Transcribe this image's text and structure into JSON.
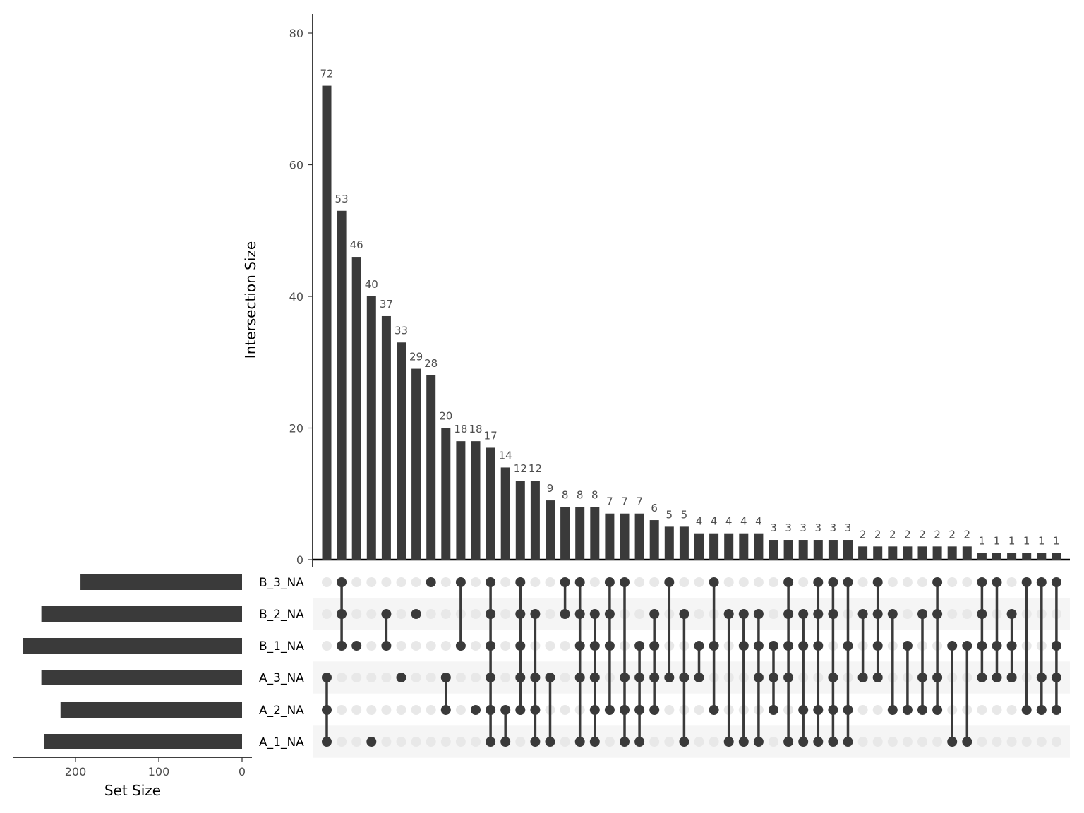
{
  "chart_data": {
    "type": "upset",
    "intersection_axis": {
      "label": "Intersection Size",
      "ylim": [
        0,
        80
      ],
      "ticks": [
        0,
        20,
        40,
        60,
        80
      ]
    },
    "set_size_axis": {
      "label": "Set Size",
      "ticks": [
        200,
        100,
        0
      ],
      "reversed": true
    },
    "sets": [
      {
        "name": "B_3_NA",
        "size": 194
      },
      {
        "name": "B_2_NA",
        "size": 241
      },
      {
        "name": "B_1_NA",
        "size": 263
      },
      {
        "name": "A_3_NA",
        "size": 241
      },
      {
        "name": "A_2_NA",
        "size": 218
      },
      {
        "name": "A_1_NA",
        "size": 238
      }
    ],
    "intersections": [
      {
        "sets": [
          "A_3_NA",
          "A_2_NA",
          "A_1_NA"
        ],
        "value": 72
      },
      {
        "sets": [
          "B_3_NA",
          "B_2_NA",
          "B_1_NA"
        ],
        "value": 53
      },
      {
        "sets": [
          "B_1_NA"
        ],
        "value": 46
      },
      {
        "sets": [
          "A_1_NA"
        ],
        "value": 40
      },
      {
        "sets": [
          "B_2_NA",
          "B_1_NA"
        ],
        "value": 37
      },
      {
        "sets": [
          "A_3_NA"
        ],
        "value": 33
      },
      {
        "sets": [
          "B_2_NA"
        ],
        "value": 29
      },
      {
        "sets": [
          "B_3_NA"
        ],
        "value": 28
      },
      {
        "sets": [
          "A_3_NA",
          "A_2_NA"
        ],
        "value": 20
      },
      {
        "sets": [
          "B_3_NA",
          "B_1_NA"
        ],
        "value": 18
      },
      {
        "sets": [
          "A_2_NA"
        ],
        "value": 18
      },
      {
        "sets": [
          "B_3_NA",
          "B_2_NA",
          "B_1_NA",
          "A_3_NA",
          "A_2_NA",
          "A_1_NA"
        ],
        "value": 17
      },
      {
        "sets": [
          "A_2_NA",
          "A_1_NA"
        ],
        "value": 14
      },
      {
        "sets": [
          "B_3_NA",
          "B_2_NA",
          "B_1_NA",
          "A_3_NA",
          "A_2_NA"
        ],
        "value": 12
      },
      {
        "sets": [
          "B_2_NA",
          "A_3_NA",
          "A_2_NA",
          "A_1_NA"
        ],
        "value": 12
      },
      {
        "sets": [
          "A_3_NA",
          "A_1_NA"
        ],
        "value": 9
      },
      {
        "sets": [
          "B_3_NA",
          "B_2_NA"
        ],
        "value": 8
      },
      {
        "sets": [
          "B_3_NA",
          "B_2_NA",
          "B_1_NA",
          "A_3_NA",
          "A_1_NA"
        ],
        "value": 8
      },
      {
        "sets": [
          "B_2_NA",
          "B_1_NA",
          "A_3_NA",
          "A_2_NA",
          "A_1_NA"
        ],
        "value": 8
      },
      {
        "sets": [
          "B_3_NA",
          "B_2_NA",
          "B_1_NA",
          "A_2_NA"
        ],
        "value": 7
      },
      {
        "sets": [
          "B_3_NA",
          "A_3_NA",
          "A_2_NA",
          "A_1_NA"
        ],
        "value": 7
      },
      {
        "sets": [
          "B_1_NA",
          "A_3_NA",
          "A_2_NA",
          "A_1_NA"
        ],
        "value": 7
      },
      {
        "sets": [
          "B_2_NA",
          "B_1_NA",
          "A_3_NA",
          "A_2_NA"
        ],
        "value": 6
      },
      {
        "sets": [
          "B_3_NA",
          "A_3_NA"
        ],
        "value": 5
      },
      {
        "sets": [
          "B_2_NA",
          "A_3_NA",
          "A_1_NA"
        ],
        "value": 5
      },
      {
        "sets": [
          "B_1_NA",
          "A_3_NA"
        ],
        "value": 4
      },
      {
        "sets": [
          "B_3_NA",
          "B_1_NA",
          "A_2_NA"
        ],
        "value": 4
      },
      {
        "sets": [
          "B_2_NA",
          "A_1_NA"
        ],
        "value": 4
      },
      {
        "sets": [
          "B_2_NA",
          "B_1_NA",
          "A_1_NA"
        ],
        "value": 4
      },
      {
        "sets": [
          "B_2_NA",
          "B_1_NA",
          "A_3_NA",
          "A_1_NA"
        ],
        "value": 4
      },
      {
        "sets": [
          "B_1_NA",
          "A_3_NA",
          "A_2_NA"
        ],
        "value": 3
      },
      {
        "sets": [
          "B_3_NA",
          "B_2_NA",
          "B_1_NA",
          "A_3_NA",
          "A_1_NA"
        ],
        "value": 3
      },
      {
        "sets": [
          "B_2_NA",
          "B_1_NA",
          "A_2_NA",
          "A_1_NA"
        ],
        "value": 3
      },
      {
        "sets": [
          "B_3_NA",
          "B_2_NA",
          "B_1_NA",
          "A_2_NA",
          "A_1_NA"
        ],
        "value": 3
      },
      {
        "sets": [
          "B_3_NA",
          "B_2_NA",
          "A_3_NA",
          "A_2_NA",
          "A_1_NA"
        ],
        "value": 3
      },
      {
        "sets": [
          "B_3_NA",
          "B_1_NA",
          "A_2_NA",
          "A_1_NA"
        ],
        "value": 3
      },
      {
        "sets": [
          "B_2_NA",
          "A_3_NA"
        ],
        "value": 2
      },
      {
        "sets": [
          "B_3_NA",
          "B_2_NA",
          "B_1_NA",
          "A_3_NA"
        ],
        "value": 2
      },
      {
        "sets": [
          "B_2_NA",
          "A_2_NA"
        ],
        "value": 2
      },
      {
        "sets": [
          "B_1_NA",
          "A_2_NA"
        ],
        "value": 2
      },
      {
        "sets": [
          "B_2_NA",
          "A_3_NA",
          "A_2_NA"
        ],
        "value": 2
      },
      {
        "sets": [
          "B_3_NA",
          "B_2_NA",
          "A_3_NA",
          "A_2_NA"
        ],
        "value": 2
      },
      {
        "sets": [
          "B_1_NA",
          "A_1_NA"
        ],
        "value": 2
      },
      {
        "sets": [
          "B_1_NA",
          "A_1_NA"
        ],
        "value": 2
      },
      {
        "sets": [
          "B_3_NA",
          "B_2_NA",
          "B_1_NA",
          "A_3_NA"
        ],
        "value": 1
      },
      {
        "sets": [
          "B_3_NA",
          "B_1_NA",
          "A_3_NA"
        ],
        "value": 1
      },
      {
        "sets": [
          "B_2_NA",
          "B_1_NA",
          "A_3_NA"
        ],
        "value": 1
      },
      {
        "sets": [
          "B_3_NA",
          "A_2_NA"
        ],
        "value": 1
      },
      {
        "sets": [
          "B_3_NA",
          "A_3_NA",
          "A_2_NA"
        ],
        "value": 1
      },
      {
        "sets": [
          "B_3_NA",
          "B_1_NA",
          "A_3_NA",
          "A_2_NA"
        ],
        "value": 1
      }
    ],
    "colors": {
      "bar": "#3a3a3a",
      "dot_active": "#3a3a3a",
      "dot_inactive": "#e8e8e8",
      "stripe": "#f5f5f5"
    }
  }
}
